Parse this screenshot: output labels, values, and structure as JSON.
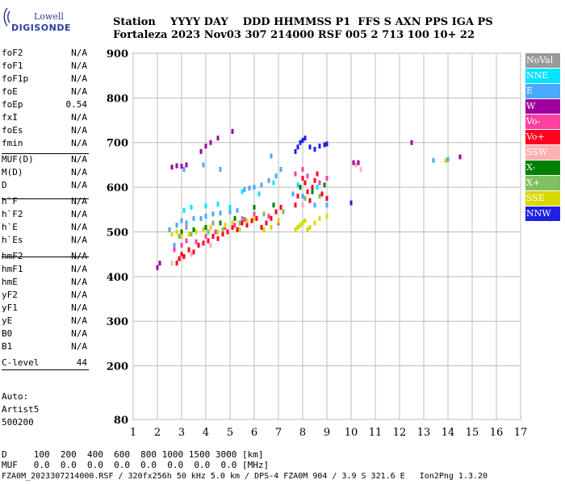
{
  "logo": {
    "line1": "Lowell",
    "line2": "DIGISONDE"
  },
  "header": {
    "row1": "Station    YYYY DAY    DDD HHMMSS P1  FFS S AXN PPS IGA PS",
    "row2": "Fortaleza 2023 Nov03 307 214000 RSF 005 2 713 100 10+ 22"
  },
  "params_group1": [
    {
      "name": "foF2",
      "value": "N/A"
    },
    {
      "name": "foF1",
      "value": "N/A"
    },
    {
      "name": "foF1p",
      "value": "N/A"
    },
    {
      "name": "foE",
      "value": "N/A"
    },
    {
      "name": "foEp",
      "value": "0.54"
    },
    {
      "name": "fxI",
      "value": "N/A"
    },
    {
      "name": "foEs",
      "value": "N/A"
    },
    {
      "name": "fmin",
      "value": "N/A"
    }
  ],
  "params_group2": [
    {
      "name": "MUF(D)",
      "value": "N/A"
    },
    {
      "name": "M(D)",
      "value": "N/A"
    },
    {
      "name": "D",
      "value": "N/A"
    }
  ],
  "params_group3": [
    {
      "name": "h`F",
      "value": "N/A"
    },
    {
      "name": "h`F2",
      "value": "N/A"
    },
    {
      "name": "h`E",
      "value": "N/A"
    },
    {
      "name": "h`Es",
      "value": "N/A"
    }
  ],
  "params_group4": [
    {
      "name": "hmF2",
      "value": "N/A"
    },
    {
      "name": "hmF1",
      "value": "N/A"
    },
    {
      "name": "hmE",
      "value": "N/A"
    },
    {
      "name": "yF2",
      "value": "N/A"
    },
    {
      "name": "yF1",
      "value": "N/A"
    },
    {
      "name": "yE",
      "value": "N/A"
    },
    {
      "name": "B0",
      "value": "N/A"
    },
    {
      "name": "B1",
      "value": "N/A"
    }
  ],
  "clevel": {
    "name": "C-level",
    "value": "44"
  },
  "auto": {
    "line1": "Auto:",
    "line2": "Artist5",
    "line3": "500200"
  },
  "legend": [
    {
      "label": "NoVal",
      "color": "#999999"
    },
    {
      "label": "NNE",
      "color": "#00e5ff"
    },
    {
      "label": "E",
      "color": "#4aa8ff"
    },
    {
      "label": "W",
      "color": "#a000a0"
    },
    {
      "label": "Vo-",
      "color": "#ff40a0"
    },
    {
      "label": "Vo+",
      "color": "#ff0020"
    },
    {
      "label": "SSW",
      "color": "#ffb0b0"
    },
    {
      "label": "X-",
      "color": "#008000"
    },
    {
      "label": "X+",
      "color": "#80c060"
    },
    {
      "label": "SSE",
      "color": "#d8d800"
    },
    {
      "label": "NNW",
      "color": "#2020e0"
    }
  ],
  "footer": {
    "row1": "D     100  200  400  600  800 1000 1500 3000 [km]",
    "row2": "MUF   0.0  0.0  0.0  0.0  0.0  0.0  0.0  0.0 [MHz]",
    "row3": "FZA0M_2023307214000.RSF / 320fx256h 50 kHz 5.0 km / DPS-4 FZA0M 904 / 3.9 S 321.6 E   Ion2Png 1.3.20"
  },
  "chart_data": {
    "type": "scatter",
    "title": "",
    "xlabel": "",
    "ylabel": "",
    "xlim": [
      1,
      17
    ],
    "ylim": [
      80,
      900
    ],
    "x_ticks": [
      "1",
      "2",
      "3",
      "4",
      "5",
      "6",
      "7",
      "8",
      "9",
      "10",
      "11",
      "12",
      "13",
      "14",
      "15",
      "16",
      "17"
    ],
    "y_ticks": [
      "80",
      "200",
      "300",
      "400",
      "500",
      "600",
      "700",
      "800",
      "900"
    ],
    "grid": true,
    "legend_position": "right",
    "series": [
      {
        "name": "W",
        "color": "#a000a0",
        "points": [
          [
            2.0,
            420
          ],
          [
            2.1,
            430
          ],
          [
            2.6,
            645
          ],
          [
            2.8,
            648
          ],
          [
            3.0,
            647
          ],
          [
            3.2,
            650
          ],
          [
            3.8,
            680
          ],
          [
            4.0,
            692
          ],
          [
            4.2,
            700
          ],
          [
            4.5,
            710
          ],
          [
            5.1,
            725
          ],
          [
            10.1,
            655
          ],
          [
            10.3,
            655
          ],
          [
            12.5,
            700
          ],
          [
            14.5,
            668
          ]
        ]
      },
      {
        "name": "NNW",
        "color": "#2020e0",
        "points": [
          [
            7.7,
            680
          ],
          [
            7.8,
            690
          ],
          [
            7.9,
            700
          ],
          [
            8.0,
            705
          ],
          [
            8.1,
            710
          ],
          [
            8.3,
            690
          ],
          [
            8.5,
            685
          ],
          [
            8.7,
            692
          ],
          [
            8.9,
            695
          ],
          [
            9.0,
            697
          ],
          [
            10.0,
            565
          ]
        ]
      },
      {
        "name": "E",
        "color": "#4aa8ff",
        "points": [
          [
            2.5,
            505
          ],
          [
            2.8,
            515
          ],
          [
            3.0,
            525
          ],
          [
            3.2,
            520
          ],
          [
            3.5,
            530
          ],
          [
            3.8,
            530
          ],
          [
            4.0,
            535
          ],
          [
            4.3,
            540
          ],
          [
            4.6,
            542
          ],
          [
            5.0,
            545
          ],
          [
            5.3,
            548
          ],
          [
            5.6,
            595
          ],
          [
            5.8,
            598
          ],
          [
            6.0,
            600
          ],
          [
            6.3,
            605
          ],
          [
            6.6,
            615
          ],
          [
            6.9,
            625
          ],
          [
            7.1,
            640
          ],
          [
            7.6,
            585
          ],
          [
            8.0,
            580
          ],
          [
            8.5,
            560
          ],
          [
            9.0,
            560
          ],
          [
            13.4,
            660
          ],
          [
            14.0,
            662
          ],
          [
            2.7,
            470
          ],
          [
            3.1,
            640
          ],
          [
            3.9,
            650
          ],
          [
            4.6,
            640
          ],
          [
            6.7,
            670
          ]
        ]
      },
      {
        "name": "NNE",
        "color": "#00e5ff",
        "points": [
          [
            3.1,
            548
          ],
          [
            3.4,
            555
          ],
          [
            4.0,
            558
          ],
          [
            4.5,
            562
          ],
          [
            5.0,
            555
          ],
          [
            5.5,
            590
          ],
          [
            6.2,
            585
          ],
          [
            6.8,
            610
          ],
          [
            7.8,
            605
          ],
          [
            8.6,
            600
          ]
        ]
      },
      {
        "name": "Vo+",
        "color": "#ff0020",
        "points": [
          [
            2.8,
            430
          ],
          [
            2.9,
            440
          ],
          [
            3.0,
            450
          ],
          [
            3.1,
            445
          ],
          [
            3.3,
            460
          ],
          [
            3.5,
            455
          ],
          [
            3.7,
            470
          ],
          [
            3.9,
            475
          ],
          [
            4.1,
            480
          ],
          [
            4.3,
            490
          ],
          [
            4.5,
            485
          ],
          [
            4.7,
            495
          ],
          [
            4.9,
            500
          ],
          [
            5.1,
            510
          ],
          [
            5.3,
            505
          ],
          [
            5.5,
            520
          ],
          [
            5.7,
            515
          ],
          [
            5.9,
            525
          ],
          [
            6.1,
            530
          ],
          [
            6.3,
            510
          ],
          [
            6.5,
            520
          ],
          [
            6.7,
            530
          ],
          [
            6.9,
            545
          ],
          [
            7.1,
            555
          ],
          [
            7.7,
            560
          ],
          [
            7.8,
            580
          ],
          [
            7.9,
            600
          ],
          [
            8.0,
            620
          ],
          [
            8.1,
            610
          ],
          [
            8.2,
            590
          ],
          [
            8.3,
            570
          ],
          [
            8.4,
            600
          ],
          [
            8.5,
            615
          ],
          [
            8.6,
            630
          ],
          [
            8.8,
            585
          ],
          [
            9.0,
            575
          ]
        ]
      },
      {
        "name": "Vo-",
        "color": "#ff40a0",
        "points": [
          [
            2.7,
            460
          ],
          [
            3.0,
            470
          ],
          [
            3.2,
            480
          ],
          [
            3.6,
            478
          ],
          [
            4.0,
            490
          ],
          [
            4.4,
            500
          ],
          [
            4.8,
            510
          ],
          [
            5.2,
            515
          ],
          [
            5.6,
            528
          ],
          [
            6.0,
            540
          ],
          [
            6.6,
            535
          ],
          [
            7.0,
            520
          ],
          [
            7.7,
            630
          ],
          [
            8.0,
            640
          ],
          [
            8.2,
            625
          ],
          [
            8.7,
            610
          ],
          [
            9.0,
            620
          ]
        ]
      },
      {
        "name": "SSW",
        "color": "#ffb0b0",
        "points": [
          [
            2.6,
            430
          ],
          [
            3.0,
            440
          ],
          [
            3.4,
            450
          ],
          [
            4.2,
            470
          ],
          [
            8.0,
            560
          ],
          [
            10.2,
            650
          ],
          [
            10.4,
            640
          ]
        ]
      },
      {
        "name": "X-",
        "color": "#008000",
        "points": [
          [
            3.0,
            500
          ],
          [
            3.5,
            505
          ],
          [
            4.0,
            510
          ],
          [
            4.6,
            520
          ],
          [
            5.2,
            530
          ],
          [
            6.0,
            555
          ],
          [
            6.8,
            560
          ],
          [
            7.9,
            600
          ],
          [
            8.4,
            590
          ],
          [
            8.9,
            605
          ]
        ]
      },
      {
        "name": "X+",
        "color": "#80c060",
        "points": [
          [
            2.9,
            490
          ],
          [
            3.4,
            495
          ],
          [
            4.1,
            500
          ],
          [
            4.7,
            505
          ],
          [
            5.4,
            520
          ],
          [
            6.4,
            540
          ],
          [
            7.2,
            545
          ],
          [
            8.1,
            575
          ],
          [
            8.7,
            580
          ]
        ]
      },
      {
        "name": "SSE",
        "color": "#d8d800",
        "points": [
          [
            2.6,
            495
          ],
          [
            2.8,
            500
          ],
          [
            3.0,
            490
          ],
          [
            3.3,
            495
          ],
          [
            3.6,
            500
          ],
          [
            3.9,
            505
          ],
          [
            4.2,
            510
          ],
          [
            4.5,
            500
          ],
          [
            4.8,
            515
          ],
          [
            5.1,
            520
          ],
          [
            5.4,
            505
          ],
          [
            5.7,
            525
          ],
          [
            6.0,
            530
          ],
          [
            6.4,
            505
          ],
          [
            6.7,
            510
          ],
          [
            7.0,
            525
          ],
          [
            7.7,
            505
          ],
          [
            7.8,
            510
          ],
          [
            7.9,
            515
          ],
          [
            8.0,
            520
          ],
          [
            8.1,
            525
          ],
          [
            8.2,
            505
          ],
          [
            8.3,
            510
          ],
          [
            8.5,
            520
          ],
          [
            8.7,
            530
          ],
          [
            9.0,
            535
          ],
          [
            13.9,
            660
          ]
        ]
      },
      {
        "name": "NoVal",
        "color": "#999999",
        "points": [
          [
            3.2,
            510
          ],
          [
            4.3,
            520
          ],
          [
            5.5,
            530
          ]
        ]
      }
    ]
  }
}
